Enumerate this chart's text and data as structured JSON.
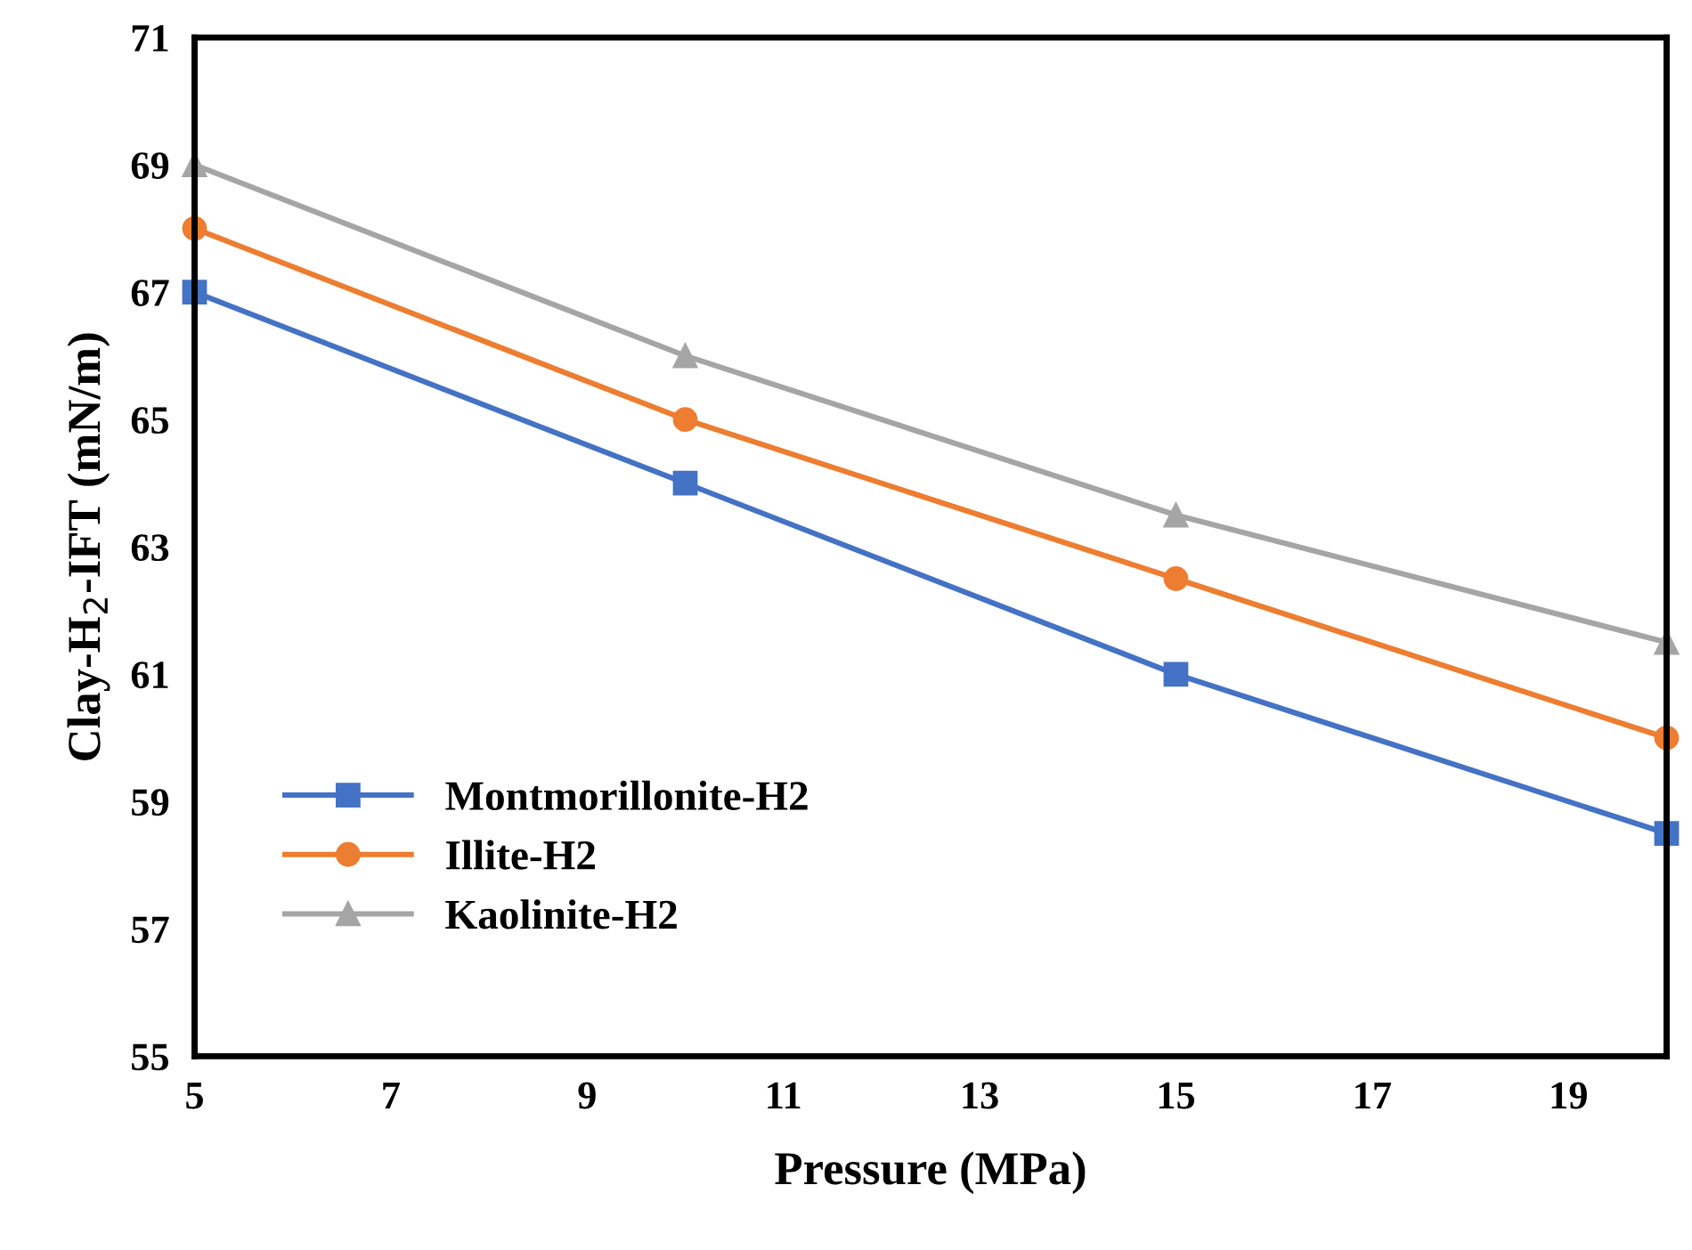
{
  "chart_data": {
    "type": "line",
    "xlabel": "Pressure (MPa)",
    "ylabel": "Clay-H$_{2}$-IFT (mN/m)",
    "xlim": [
      5,
      20
    ],
    "ylim": [
      55,
      71
    ],
    "xticks": [
      5,
      7,
      9,
      11,
      13,
      15,
      17,
      19
    ],
    "yticks": [
      55,
      57,
      59,
      61,
      63,
      65,
      67,
      69,
      71
    ],
    "grid": false,
    "legend": "bottom left",
    "series": [
      {
        "name": "Montmorillonite-H2",
        "color": "#4472c4",
        "marker": "square",
        "x": [
          5,
          10,
          15,
          20
        ],
        "values": [
          67,
          64,
          61,
          58.5
        ]
      },
      {
        "name": "Illite-H2",
        "color": "#ed7d31",
        "marker": "circle",
        "x": [
          5,
          10,
          15,
          20
        ],
        "values": [
          68,
          65,
          62.5,
          60
        ]
      },
      {
        "name": "Kaolinite-H2",
        "color": "#a5a5a5",
        "marker": "triangle",
        "x": [
          5,
          10,
          15,
          20
        ],
        "values": [
          69,
          66,
          63.5,
          61.5
        ]
      }
    ]
  }
}
